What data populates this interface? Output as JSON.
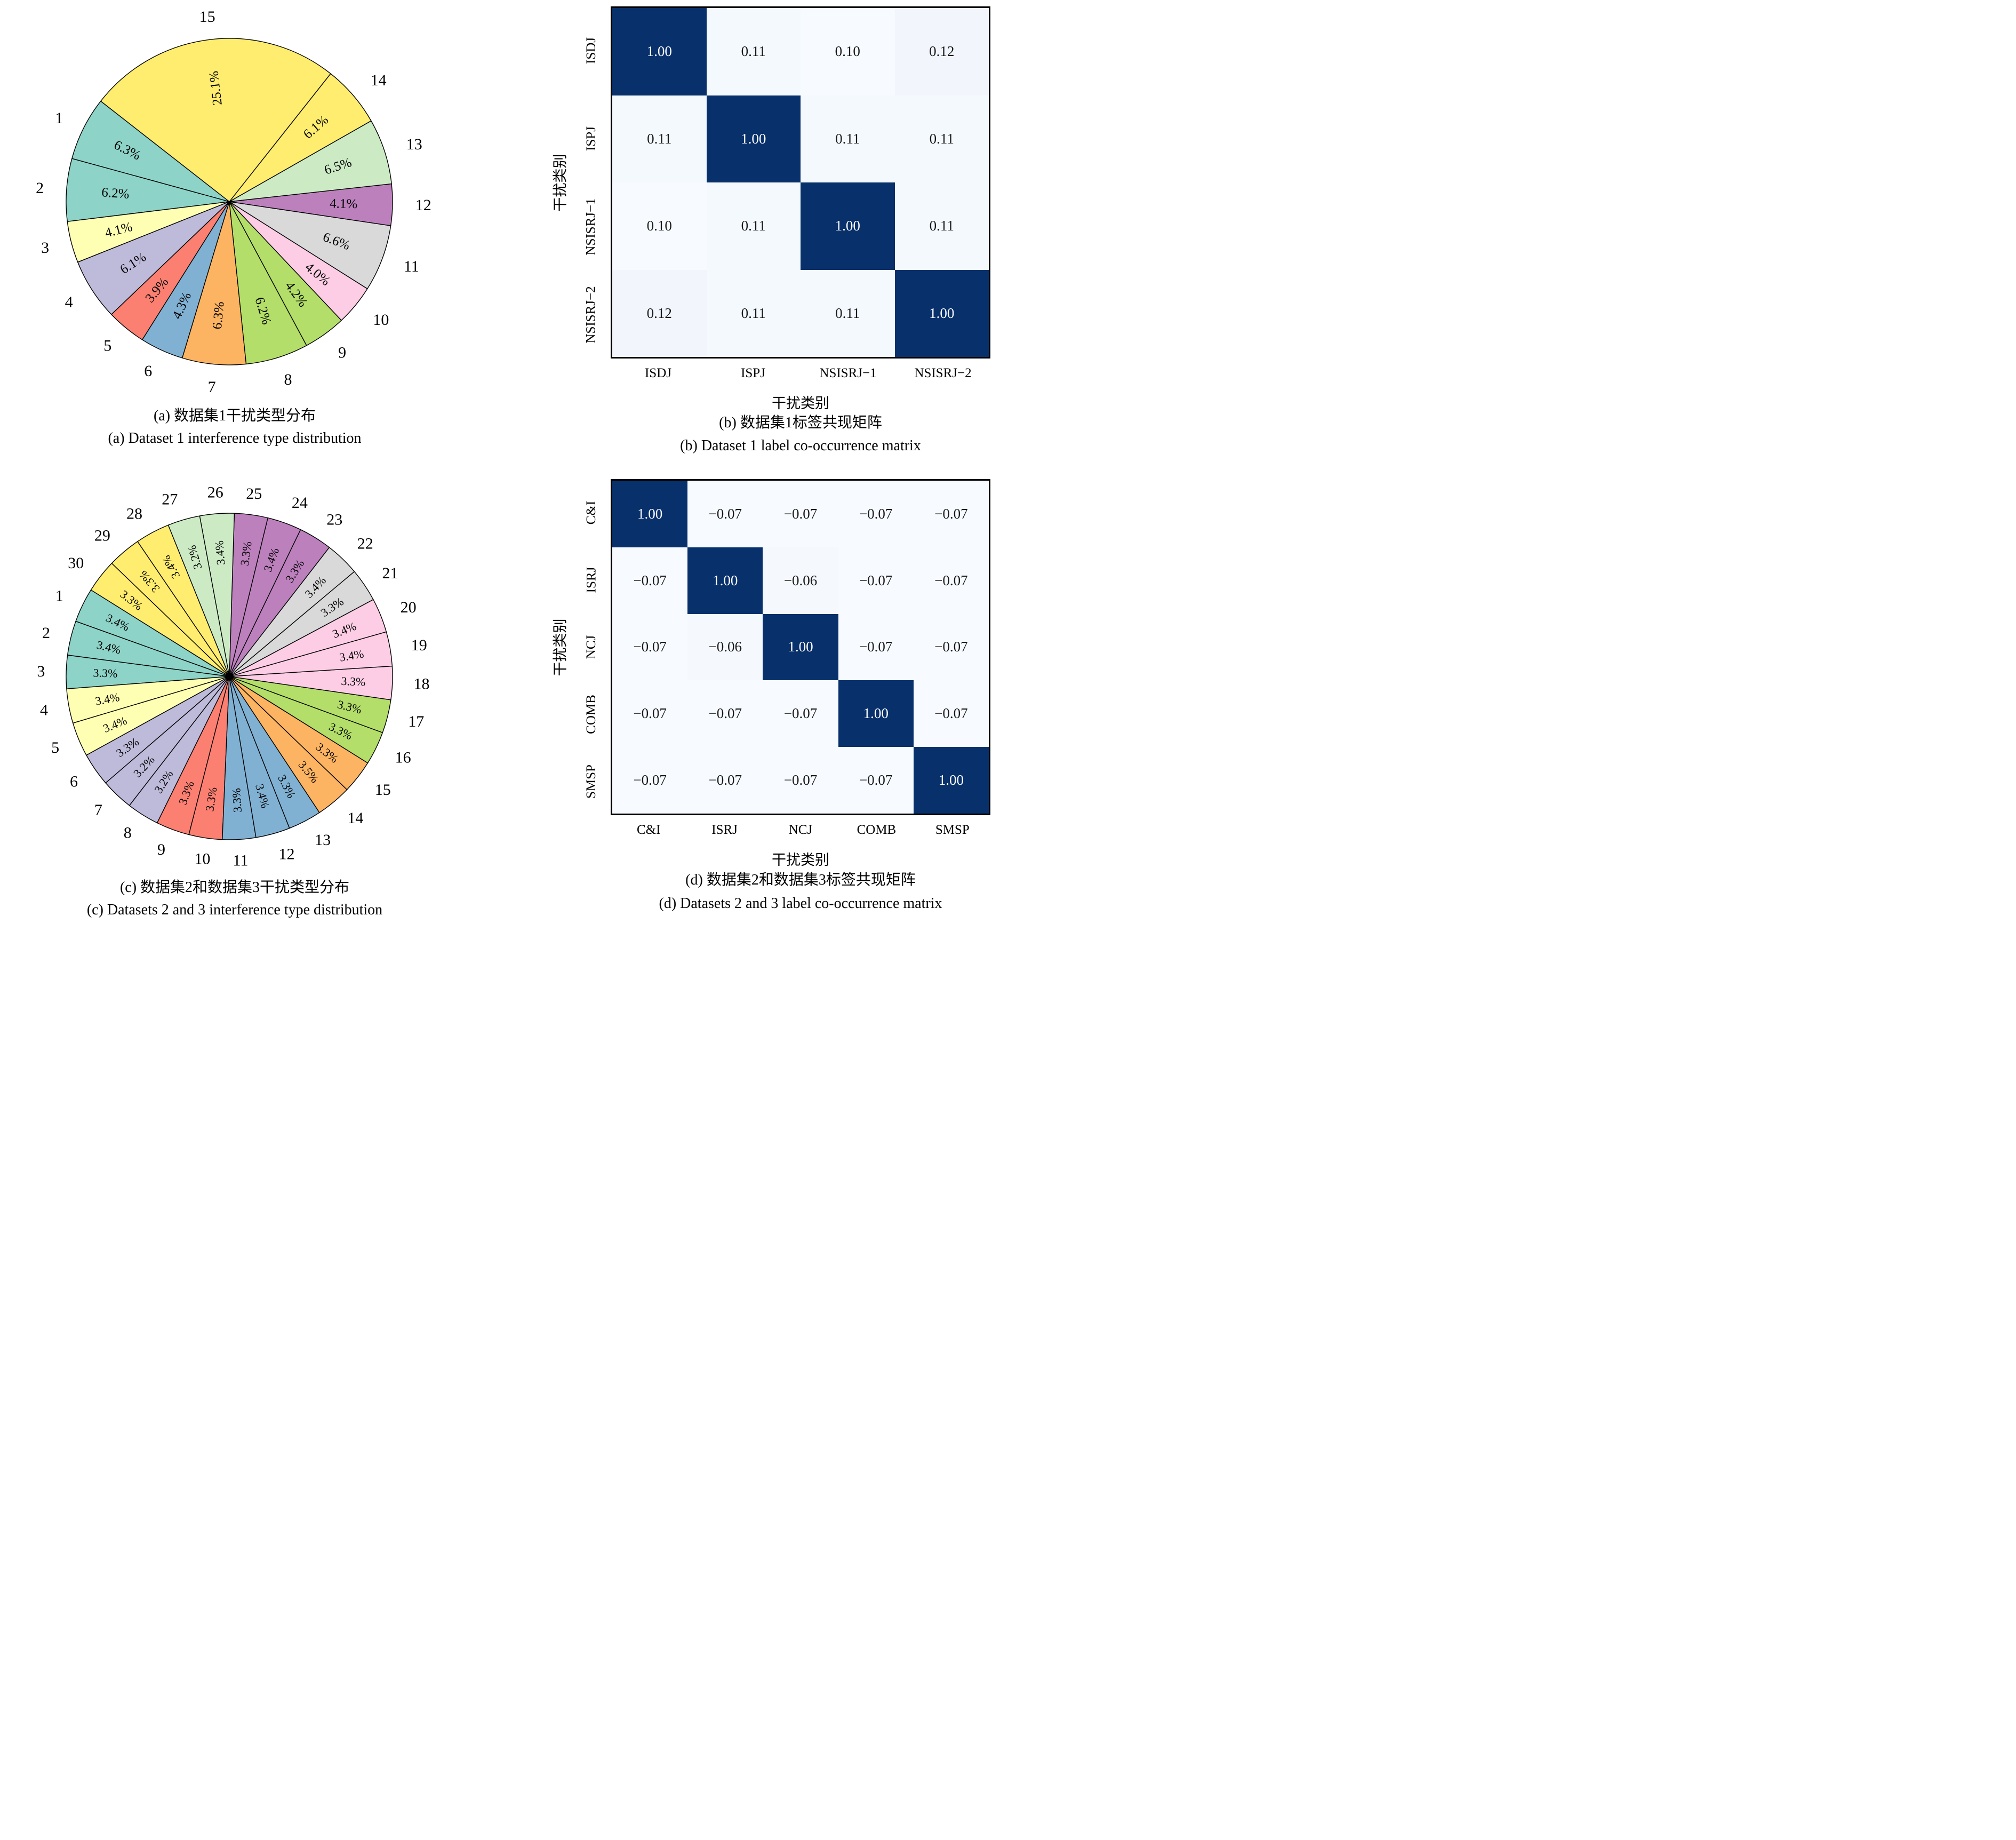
{
  "figure": {
    "background": "#ffffff",
    "text_color": "#000000"
  },
  "palette_set3": [
    "#8dd3c7",
    "#ffffb3",
    "#bebada",
    "#fb8072",
    "#80b1d3",
    "#fdb462",
    "#b3de69",
    "#fccde5",
    "#d9d9d9",
    "#bc80bd",
    "#ccebc5",
    "#ffed6f"
  ],
  "chart_data": [
    {
      "type": "pie",
      "id": "a",
      "caption_zh": "(a) 数据集1干扰类型分布",
      "caption_en": "(a) Dataset 1 interference type distribution",
      "categories": [
        "1",
        "2",
        "3",
        "4",
        "5",
        "6",
        "7",
        "8",
        "9",
        "10",
        "11",
        "12",
        "13",
        "14",
        "15"
      ],
      "values": [
        6.3,
        6.2,
        4.1,
        6.1,
        3.9,
        4.3,
        6.3,
        6.2,
        4.2,
        4.0,
        6.6,
        4.1,
        6.5,
        6.1,
        25.1
      ],
      "unit": "%",
      "colors": [
        "#8dd3c7",
        "#8dd3c7",
        "#ffffb3",
        "#bebada",
        "#fb8072",
        "#80b1d3",
        "#fdb462",
        "#b3de69",
        "#b3de69",
        "#fccde5",
        "#d9d9d9",
        "#bc80bd",
        "#ccebc5",
        "#ffed6f",
        "#ffed6f"
      ],
      "start_angle_deg": 142,
      "direction": "counterclockwise",
      "label_position": "outside",
      "pct_labels_rotated_radially": true
    },
    {
      "type": "heatmap",
      "id": "b",
      "caption_zh": "(b) 数据集1标签共现矩阵",
      "caption_en": "(b) Dataset 1 label co-occurrence matrix",
      "xlabel": "干扰类别",
      "ylabel": "干扰类别",
      "row_labels": [
        "ISDJ",
        "ISPJ",
        "NSISRJ−1",
        "NSISRJ−2"
      ],
      "col_labels": [
        "ISDJ",
        "ISPJ",
        "NSISRJ−1",
        "NSISRJ−2"
      ],
      "values": [
        [
          1.0,
          0.11,
          0.1,
          0.12
        ],
        [
          0.11,
          1.0,
          0.11,
          0.11
        ],
        [
          0.1,
          0.11,
          1.0,
          0.11
        ],
        [
          0.12,
          0.11,
          0.11,
          1.0
        ]
      ],
      "colormap": {
        "name": "Blues",
        "low": "#f7fbff",
        "high": "#08306b"
      },
      "value_format": "0.00"
    },
    {
      "type": "pie",
      "id": "c",
      "caption_zh": "(c) 数据集2和数据集3干扰类型分布",
      "caption_en": "(c) Datasets 2 and 3 interference type distribution",
      "categories": [
        "1",
        "2",
        "3",
        "4",
        "5",
        "6",
        "7",
        "8",
        "9",
        "10",
        "11",
        "12",
        "13",
        "14",
        "15",
        "16",
        "17",
        "18",
        "19",
        "20",
        "21",
        "22",
        "23",
        "24",
        "25",
        "26",
        "27",
        "28",
        "29",
        "30"
      ],
      "values": [
        3.4,
        3.4,
        3.3,
        3.4,
        3.4,
        3.3,
        3.2,
        3.2,
        3.3,
        3.3,
        3.3,
        3.4,
        3.3,
        3.5,
        3.3,
        3.3,
        3.3,
        3.3,
        3.4,
        3.4,
        3.3,
        3.4,
        3.3,
        3.4,
        3.3,
        3.4,
        3.2,
        3.4,
        3.3,
        3.3
      ],
      "unit": "%",
      "colors": [
        "#8dd3c7",
        "#8dd3c7",
        "#8dd3c7",
        "#ffffb3",
        "#ffffb3",
        "#bebada",
        "#bebada",
        "#bebada",
        "#fb8072",
        "#fb8072",
        "#80b1d3",
        "#80b1d3",
        "#80b1d3",
        "#fdb462",
        "#fdb462",
        "#b3de69",
        "#b3de69",
        "#fccde5",
        "#fccde5",
        "#fccde5",
        "#d9d9d9",
        "#d9d9d9",
        "#bc80bd",
        "#bc80bd",
        "#bc80bd",
        "#ccebc5",
        "#ccebc5",
        "#ffed6f",
        "#ffed6f",
        "#ffed6f"
      ],
      "start_angle_deg": 148,
      "direction": "counterclockwise",
      "label_position": "outside",
      "pct_labels_rotated_radially": true
    },
    {
      "type": "heatmap",
      "id": "d",
      "caption_zh": "(d) 数据集2和数据集3标签共现矩阵",
      "caption_en": "(d) Datasets 2 and 3 label co-occurrence matrix",
      "xlabel": "干扰类别",
      "ylabel": "干扰类别",
      "row_labels": [
        "C&I",
        "ISRJ",
        "NCJ",
        "COMB",
        "SMSP"
      ],
      "col_labels": [
        "C&I",
        "ISRJ",
        "NCJ",
        "COMB",
        "SMSP"
      ],
      "values": [
        [
          1.0,
          -0.07,
          -0.07,
          -0.07,
          -0.07
        ],
        [
          -0.07,
          1.0,
          -0.06,
          -0.07,
          -0.07
        ],
        [
          -0.07,
          -0.06,
          1.0,
          -0.07,
          -0.07
        ],
        [
          -0.07,
          -0.07,
          -0.07,
          1.0,
          -0.07
        ],
        [
          -0.07,
          -0.07,
          -0.07,
          -0.07,
          1.0
        ]
      ],
      "colormap": {
        "name": "Blues",
        "low": "#f7fbff",
        "high": "#08306b"
      },
      "value_format": "0.00"
    }
  ]
}
